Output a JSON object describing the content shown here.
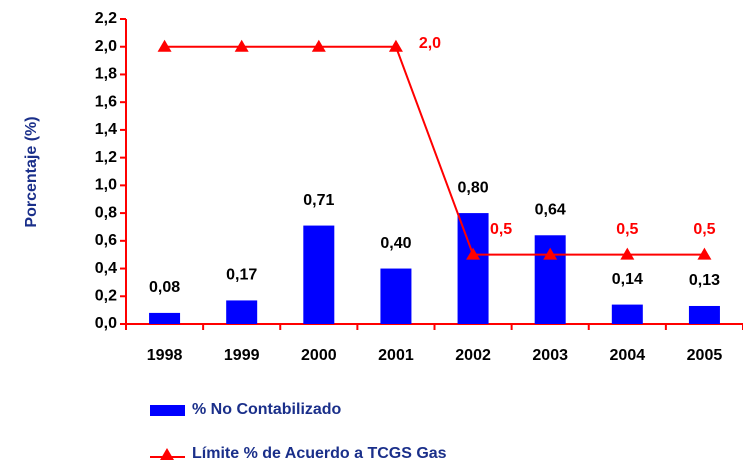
{
  "chart_data": {
    "type": "bar",
    "y_label": "Porcentaje (%)",
    "categories": [
      "1998",
      "1999",
      "2000",
      "2001",
      "2002",
      "2003",
      "2004",
      "2005"
    ],
    "series": [
      {
        "name": "% No Contabilizado",
        "type": "bar",
        "color": "#0000ff",
        "values": [
          0.08,
          0.17,
          0.71,
          0.4,
          0.8,
          0.64,
          0.14,
          0.13
        ],
        "value_labels": [
          "0,08",
          "0,17",
          "0,71",
          "0,40",
          "0,80",
          "0,64",
          "0,14",
          "0,13"
        ]
      },
      {
        "name": "Límite % de Acuerdo a TCGS Gas",
        "type": "line",
        "color": "#ff0000",
        "values": [
          2.0,
          2.0,
          2.0,
          2.0,
          0.5,
          0.5,
          0.5,
          0.5
        ],
        "value_labels": [
          null,
          null,
          null,
          "2,0",
          "0,5",
          null,
          "0,5",
          "0,5"
        ]
      }
    ],
    "ylim": [
      0,
      2.2
    ],
    "yticks": [
      {
        "value": 0,
        "label": "0,0"
      },
      {
        "value": 0.2,
        "label": "0,2"
      },
      {
        "value": 0.4,
        "label": "0,4"
      },
      {
        "value": 0.6,
        "label": "0,6"
      },
      {
        "value": 0.8,
        "label": "0,8"
      },
      {
        "value": 1.0,
        "label": "1,0"
      },
      {
        "value": 1.2,
        "label": "1,2"
      },
      {
        "value": 1.4,
        "label": "1,4"
      },
      {
        "value": 1.6,
        "label": "1,6"
      },
      {
        "value": 1.8,
        "label": "1,8"
      },
      {
        "value": 2.0,
        "label": "2,0"
      },
      {
        "value": 2.2,
        "label": "2,2"
      }
    ],
    "grid": false,
    "legend": "bottom"
  }
}
